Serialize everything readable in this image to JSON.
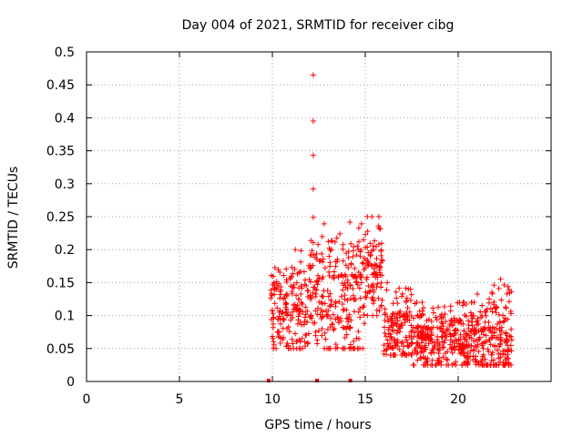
{
  "chart_data": {
    "type": "scatter",
    "title": "Day 004 of 2021, SRMTID for receiver cibg",
    "xlabel": "GPS time / hours",
    "ylabel": "SRMTID / TECUs",
    "xlim": [
      0,
      25
    ],
    "ylim": [
      0,
      0.5
    ],
    "xticks": [
      0,
      5,
      10,
      15,
      20
    ],
    "yticks": [
      0,
      0.05,
      0.1,
      0.15,
      0.2,
      0.25,
      0.3,
      0.35,
      0.4,
      0.45,
      0.5
    ],
    "grid": true,
    "marker": "+",
    "series_color": "#ff0000",
    "spike_points": [
      [
        12.2,
        0.465
      ],
      [
        12.2,
        0.395
      ],
      [
        12.2,
        0.343
      ],
      [
        12.2,
        0.292
      ],
      [
        12.2,
        0.249
      ]
    ],
    "zero_points": [
      [
        9.8,
        0.0
      ],
      [
        12.4,
        0.0
      ],
      [
        14.2,
        0.0
      ]
    ],
    "clusters": [
      {
        "x_start": 9.9,
        "x_end": 12.0,
        "y_min": 0.05,
        "y_max": 0.2,
        "center": 0.11,
        "count": 180
      },
      {
        "x_start": 12.0,
        "x_end": 15.0,
        "y_min": 0.05,
        "y_max": 0.25,
        "center": 0.13,
        "count": 260
      },
      {
        "x_start": 15.0,
        "x_end": 16.0,
        "y_min": 0.1,
        "y_max": 0.25,
        "center": 0.17,
        "count": 90
      },
      {
        "x_start": 16.0,
        "x_end": 17.5,
        "y_min": 0.04,
        "y_max": 0.15,
        "center": 0.08,
        "count": 140
      },
      {
        "x_start": 17.5,
        "x_end": 21.0,
        "y_min": 0.025,
        "y_max": 0.12,
        "center": 0.065,
        "count": 330
      },
      {
        "x_start": 21.0,
        "x_end": 22.9,
        "y_min": 0.025,
        "y_max": 0.16,
        "center": 0.06,
        "count": 190
      }
    ]
  }
}
